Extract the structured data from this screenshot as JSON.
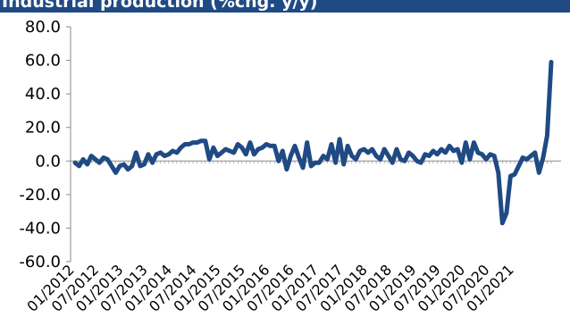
{
  "chart_data": {
    "type": "line",
    "title": "Industrial production (%chg. y/y)",
    "xlabel": "",
    "ylabel": "",
    "ylim": [
      -60,
      80
    ],
    "yticks": [
      "80.0",
      "60.0",
      "40.0",
      "20.0",
      "0.0",
      "-20.0",
      "-40.0",
      "-60.0"
    ],
    "ytick_values": [
      80,
      60,
      40,
      20,
      0,
      -20,
      -40,
      -60
    ],
    "xticks": [
      "01/2012",
      "07/2012",
      "01/2013",
      "07/2013",
      "01/2014",
      "07/2014",
      "01/2015",
      "07/2015",
      "01/2016",
      "07/2016",
      "01/2017",
      "07/2017",
      "01/2018",
      "07/2018",
      "01/2019",
      "07/2019",
      "01/2020",
      "07/2020",
      "01/2021"
    ],
    "grid": false,
    "legend": "none",
    "line_color": "#1f4a84",
    "series": [
      {
        "start": "01/2012",
        "frequency": "monthly",
        "values": [
          -1,
          -3,
          1,
          -2,
          3,
          1,
          -1,
          2,
          1,
          -3,
          -7,
          -3,
          -2,
          -5,
          -3,
          5,
          -3,
          -2,
          4,
          -1,
          4,
          5,
          3,
          4,
          6,
          5,
          8,
          10,
          10,
          11,
          11,
          12,
          12,
          1,
          8,
          3,
          5,
          7,
          6,
          5,
          10,
          8,
          4,
          11,
          4,
          7,
          8,
          10,
          9,
          9,
          0,
          6,
          -5,
          3,
          9,
          2,
          -4,
          11,
          -3,
          -1,
          -1,
          3,
          1,
          10,
          -1,
          13,
          -2,
          9,
          3,
          1,
          6,
          7,
          5,
          7,
          3,
          1,
          7,
          3,
          -1,
          7,
          1,
          0,
          5,
          3,
          0,
          -1,
          4,
          3,
          6,
          4,
          7,
          5,
          9,
          6,
          7,
          -1,
          11,
          1,
          11,
          5,
          4,
          1,
          4,
          3,
          -7,
          -37,
          -31,
          -9,
          -8,
          -3,
          2,
          1,
          3,
          5,
          -7,
          2,
          15,
          59
        ]
      }
    ]
  }
}
